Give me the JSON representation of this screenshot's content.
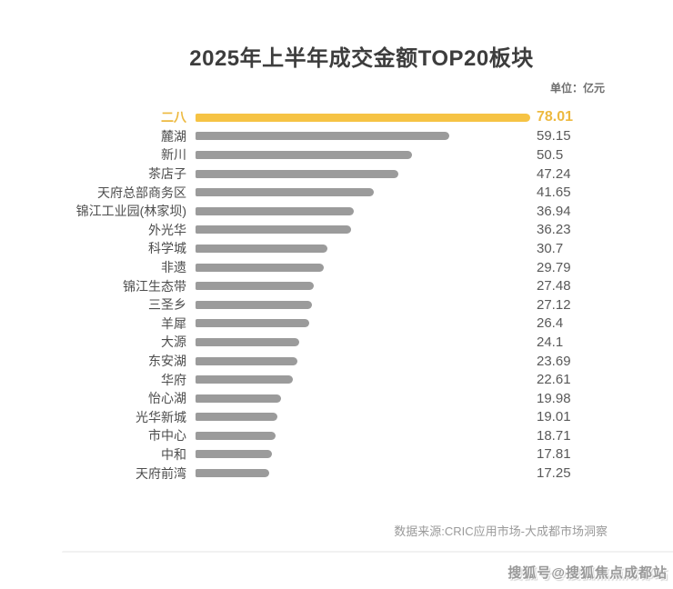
{
  "title": "2025年上半年成交金额TOP20板块",
  "unit_label": "单位：亿元",
  "source": "数据来源:CRIC应用市场-大成都市场洞察",
  "watermark": "搜狐号@搜狐焦点成都站",
  "colors": {
    "highlight_bar": "#f6c344",
    "highlight_text": "#edb93f",
    "bar": "#9b9b9b",
    "title_text": "#3d3d3d",
    "label_text": "#4d4d4d",
    "value_text": "#595959"
  },
  "chart_data": {
    "type": "bar",
    "orientation": "horizontal",
    "title": "2025年上半年成交金额TOP20板块",
    "unit": "亿元",
    "categories": [
      "二八",
      "麓湖",
      "新川",
      "茶店子",
      "天府总部商务区",
      "锦江工业园(林家坝)",
      "外光华",
      "科学城",
      "非遗",
      "锦江生态带",
      "三圣乡",
      "羊犀",
      "大源",
      "东安湖",
      "华府",
      "怡心湖",
      "光华新城",
      "市中心",
      "中和",
      "天府前湾"
    ],
    "values": [
      78.01,
      59.15,
      50.5,
      47.24,
      41.65,
      36.94,
      36.23,
      30.7,
      29.79,
      27.48,
      27.12,
      26.4,
      24.1,
      23.69,
      22.61,
      19.98,
      19.01,
      18.71,
      17.81,
      17.25
    ],
    "highlight_index": 0,
    "highlight_category": "二八",
    "xlim": [
      0,
      78.01
    ],
    "value_labels_shown": true,
    "grid": false,
    "legend": false,
    "source": "数据来源:CRIC应用市场-大成都市场洞察"
  }
}
